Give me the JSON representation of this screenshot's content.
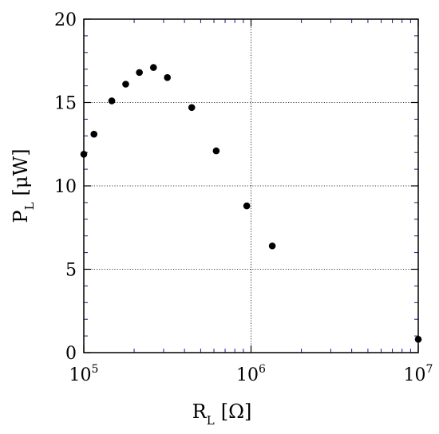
{
  "chart_data": {
    "type": "scatter",
    "title": "",
    "xlabel": {
      "main": "R",
      "sub": "L",
      "unit": "[Ω]"
    },
    "ylabel": {
      "main": "P",
      "sub": "L",
      "unit": "[μW]"
    },
    "xscale": "log",
    "xlim": [
      100000,
      10000000
    ],
    "ylim": [
      0,
      20
    ],
    "xticks": [
      {
        "base": "10",
        "exp": "5"
      },
      {
        "base": "10",
        "exp": "6"
      },
      {
        "base": "10",
        "exp": "7"
      }
    ],
    "yticks": [
      "0",
      "5",
      "10",
      "15",
      "20"
    ],
    "grid": "dotted gridlines at major ticks",
    "colors": {
      "points": "#000000",
      "minor_ticks": "#1a1a8c",
      "frame": "#000000"
    },
    "points": [
      {
        "x": 100000,
        "y": 11.9
      },
      {
        "x": 115000,
        "y": 13.1
      },
      {
        "x": 147000,
        "y": 15.1
      },
      {
        "x": 178000,
        "y": 16.1
      },
      {
        "x": 215000,
        "y": 16.8
      },
      {
        "x": 261000,
        "y": 17.1
      },
      {
        "x": 316000,
        "y": 16.5
      },
      {
        "x": 442000,
        "y": 14.7
      },
      {
        "x": 619000,
        "y": 12.1
      },
      {
        "x": 943000,
        "y": 8.8
      },
      {
        "x": 1340000,
        "y": 6.4
      },
      {
        "x": 10000000,
        "y": 0.8
      }
    ]
  }
}
